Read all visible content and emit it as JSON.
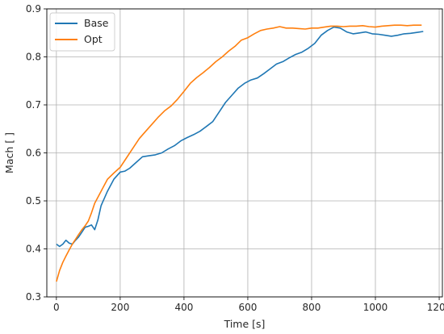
{
  "chart_data": {
    "type": "line",
    "title": "",
    "xlabel": "Time [s]",
    "ylabel": "Mach [ ]",
    "xlim": [
      -30,
      1210
    ],
    "ylim": [
      0.3,
      0.9
    ],
    "xticks": [
      0,
      200,
      400,
      600,
      800,
      1000,
      1200
    ],
    "xtick_labels": [
      "0",
      "200",
      "400",
      "600",
      "800",
      "1000",
      "1200"
    ],
    "yticks": [
      0.3,
      0.4,
      0.5,
      0.6,
      0.7,
      0.8,
      0.9
    ],
    "ytick_labels": [
      "0.3",
      "0.4",
      "0.5",
      "0.6",
      "0.7",
      "0.8",
      "0.9"
    ],
    "grid": true,
    "legend_position": "top-left",
    "series": [
      {
        "name": "Base",
        "color": "#1f77b4",
        "points": [
          [
            0,
            0.41
          ],
          [
            10,
            0.405
          ],
          [
            20,
            0.41
          ],
          [
            30,
            0.418
          ],
          [
            40,
            0.412
          ],
          [
            50,
            0.41
          ],
          [
            60,
            0.418
          ],
          [
            70,
            0.425
          ],
          [
            80,
            0.435
          ],
          [
            90,
            0.445
          ],
          [
            100,
            0.447
          ],
          [
            110,
            0.45
          ],
          [
            120,
            0.44
          ],
          [
            130,
            0.46
          ],
          [
            140,
            0.49
          ],
          [
            160,
            0.52
          ],
          [
            180,
            0.545
          ],
          [
            200,
            0.56
          ],
          [
            215,
            0.562
          ],
          [
            230,
            0.568
          ],
          [
            250,
            0.58
          ],
          [
            270,
            0.592
          ],
          [
            290,
            0.594
          ],
          [
            310,
            0.596
          ],
          [
            330,
            0.6
          ],
          [
            350,
            0.608
          ],
          [
            370,
            0.615
          ],
          [
            390,
            0.625
          ],
          [
            410,
            0.632
          ],
          [
            430,
            0.638
          ],
          [
            450,
            0.645
          ],
          [
            470,
            0.655
          ],
          [
            490,
            0.665
          ],
          [
            510,
            0.685
          ],
          [
            530,
            0.705
          ],
          [
            550,
            0.72
          ],
          [
            570,
            0.735
          ],
          [
            590,
            0.745
          ],
          [
            610,
            0.752
          ],
          [
            630,
            0.756
          ],
          [
            650,
            0.765
          ],
          [
            670,
            0.775
          ],
          [
            690,
            0.785
          ],
          [
            710,
            0.79
          ],
          [
            730,
            0.798
          ],
          [
            750,
            0.805
          ],
          [
            770,
            0.81
          ],
          [
            790,
            0.818
          ],
          [
            810,
            0.828
          ],
          [
            830,
            0.845
          ],
          [
            850,
            0.855
          ],
          [
            870,
            0.862
          ],
          [
            890,
            0.86
          ],
          [
            910,
            0.852
          ],
          [
            930,
            0.848
          ],
          [
            950,
            0.85
          ],
          [
            970,
            0.852
          ],
          [
            990,
            0.848
          ],
          [
            1010,
            0.847
          ],
          [
            1030,
            0.845
          ],
          [
            1050,
            0.843
          ],
          [
            1070,
            0.845
          ],
          [
            1090,
            0.848
          ],
          [
            1110,
            0.849
          ],
          [
            1130,
            0.851
          ],
          [
            1150,
            0.853
          ]
        ]
      },
      {
        "name": "Opt",
        "color": "#ff7f0e",
        "points": [
          [
            0,
            0.332
          ],
          [
            10,
            0.355
          ],
          [
            20,
            0.372
          ],
          [
            30,
            0.385
          ],
          [
            40,
            0.398
          ],
          [
            50,
            0.41
          ],
          [
            60,
            0.42
          ],
          [
            70,
            0.43
          ],
          [
            80,
            0.44
          ],
          [
            90,
            0.448
          ],
          [
            100,
            0.458
          ],
          [
            110,
            0.475
          ],
          [
            120,
            0.495
          ],
          [
            140,
            0.52
          ],
          [
            160,
            0.545
          ],
          [
            180,
            0.558
          ],
          [
            200,
            0.57
          ],
          [
            220,
            0.59
          ],
          [
            240,
            0.61
          ],
          [
            260,
            0.63
          ],
          [
            280,
            0.645
          ],
          [
            300,
            0.66
          ],
          [
            320,
            0.675
          ],
          [
            340,
            0.688
          ],
          [
            360,
            0.698
          ],
          [
            380,
            0.712
          ],
          [
            400,
            0.728
          ],
          [
            420,
            0.745
          ],
          [
            440,
            0.757
          ],
          [
            460,
            0.767
          ],
          [
            480,
            0.778
          ],
          [
            500,
            0.79
          ],
          [
            520,
            0.8
          ],
          [
            540,
            0.812
          ],
          [
            560,
            0.822
          ],
          [
            580,
            0.835
          ],
          [
            600,
            0.84
          ],
          [
            620,
            0.848
          ],
          [
            640,
            0.855
          ],
          [
            660,
            0.858
          ],
          [
            680,
            0.86
          ],
          [
            700,
            0.863
          ],
          [
            720,
            0.86
          ],
          [
            740,
            0.86
          ],
          [
            760,
            0.859
          ],
          [
            780,
            0.858
          ],
          [
            800,
            0.86
          ],
          [
            820,
            0.86
          ],
          [
            840,
            0.862
          ],
          [
            860,
            0.864
          ],
          [
            880,
            0.864
          ],
          [
            900,
            0.863
          ],
          [
            920,
            0.864
          ],
          [
            940,
            0.864
          ],
          [
            960,
            0.865
          ],
          [
            980,
            0.863
          ],
          [
            1000,
            0.862
          ],
          [
            1020,
            0.864
          ],
          [
            1040,
            0.865
          ],
          [
            1060,
            0.866
          ],
          [
            1080,
            0.866
          ],
          [
            1100,
            0.865
          ],
          [
            1120,
            0.866
          ],
          [
            1145,
            0.866
          ]
        ]
      }
    ]
  }
}
